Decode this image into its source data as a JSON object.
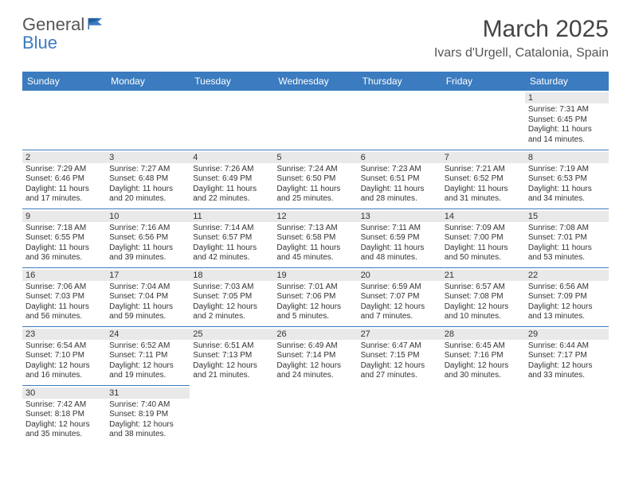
{
  "brand": {
    "name1": "General",
    "name2": "Blue"
  },
  "title": "March 2025",
  "location": "Ivars d'Urgell, Catalonia, Spain",
  "colors": {
    "headerBg": "#3b7bbf",
    "cellBorder": "#3b7bbf",
    "dayBg": "#e9e9e9"
  },
  "weekdays": [
    "Sunday",
    "Monday",
    "Tuesday",
    "Wednesday",
    "Thursday",
    "Friday",
    "Saturday"
  ],
  "weeks": [
    [
      null,
      null,
      null,
      null,
      null,
      null,
      {
        "d": "1",
        "sr": "Sunrise: 7:31 AM",
        "ss": "Sunset: 6:45 PM",
        "dl1": "Daylight: 11 hours",
        "dl2": "and 14 minutes."
      }
    ],
    [
      {
        "d": "2",
        "sr": "Sunrise: 7:29 AM",
        "ss": "Sunset: 6:46 PM",
        "dl1": "Daylight: 11 hours",
        "dl2": "and 17 minutes."
      },
      {
        "d": "3",
        "sr": "Sunrise: 7:27 AM",
        "ss": "Sunset: 6:48 PM",
        "dl1": "Daylight: 11 hours",
        "dl2": "and 20 minutes."
      },
      {
        "d": "4",
        "sr": "Sunrise: 7:26 AM",
        "ss": "Sunset: 6:49 PM",
        "dl1": "Daylight: 11 hours",
        "dl2": "and 22 minutes."
      },
      {
        "d": "5",
        "sr": "Sunrise: 7:24 AM",
        "ss": "Sunset: 6:50 PM",
        "dl1": "Daylight: 11 hours",
        "dl2": "and 25 minutes."
      },
      {
        "d": "6",
        "sr": "Sunrise: 7:23 AM",
        "ss": "Sunset: 6:51 PM",
        "dl1": "Daylight: 11 hours",
        "dl2": "and 28 minutes."
      },
      {
        "d": "7",
        "sr": "Sunrise: 7:21 AM",
        "ss": "Sunset: 6:52 PM",
        "dl1": "Daylight: 11 hours",
        "dl2": "and 31 minutes."
      },
      {
        "d": "8",
        "sr": "Sunrise: 7:19 AM",
        "ss": "Sunset: 6:53 PM",
        "dl1": "Daylight: 11 hours",
        "dl2": "and 34 minutes."
      }
    ],
    [
      {
        "d": "9",
        "sr": "Sunrise: 7:18 AM",
        "ss": "Sunset: 6:55 PM",
        "dl1": "Daylight: 11 hours",
        "dl2": "and 36 minutes."
      },
      {
        "d": "10",
        "sr": "Sunrise: 7:16 AM",
        "ss": "Sunset: 6:56 PM",
        "dl1": "Daylight: 11 hours",
        "dl2": "and 39 minutes."
      },
      {
        "d": "11",
        "sr": "Sunrise: 7:14 AM",
        "ss": "Sunset: 6:57 PM",
        "dl1": "Daylight: 11 hours",
        "dl2": "and 42 minutes."
      },
      {
        "d": "12",
        "sr": "Sunrise: 7:13 AM",
        "ss": "Sunset: 6:58 PM",
        "dl1": "Daylight: 11 hours",
        "dl2": "and 45 minutes."
      },
      {
        "d": "13",
        "sr": "Sunrise: 7:11 AM",
        "ss": "Sunset: 6:59 PM",
        "dl1": "Daylight: 11 hours",
        "dl2": "and 48 minutes."
      },
      {
        "d": "14",
        "sr": "Sunrise: 7:09 AM",
        "ss": "Sunset: 7:00 PM",
        "dl1": "Daylight: 11 hours",
        "dl2": "and 50 minutes."
      },
      {
        "d": "15",
        "sr": "Sunrise: 7:08 AM",
        "ss": "Sunset: 7:01 PM",
        "dl1": "Daylight: 11 hours",
        "dl2": "and 53 minutes."
      }
    ],
    [
      {
        "d": "16",
        "sr": "Sunrise: 7:06 AM",
        "ss": "Sunset: 7:03 PM",
        "dl1": "Daylight: 11 hours",
        "dl2": "and 56 minutes."
      },
      {
        "d": "17",
        "sr": "Sunrise: 7:04 AM",
        "ss": "Sunset: 7:04 PM",
        "dl1": "Daylight: 11 hours",
        "dl2": "and 59 minutes."
      },
      {
        "d": "18",
        "sr": "Sunrise: 7:03 AM",
        "ss": "Sunset: 7:05 PM",
        "dl1": "Daylight: 12 hours",
        "dl2": "and 2 minutes."
      },
      {
        "d": "19",
        "sr": "Sunrise: 7:01 AM",
        "ss": "Sunset: 7:06 PM",
        "dl1": "Daylight: 12 hours",
        "dl2": "and 5 minutes."
      },
      {
        "d": "20",
        "sr": "Sunrise: 6:59 AM",
        "ss": "Sunset: 7:07 PM",
        "dl1": "Daylight: 12 hours",
        "dl2": "and 7 minutes."
      },
      {
        "d": "21",
        "sr": "Sunrise: 6:57 AM",
        "ss": "Sunset: 7:08 PM",
        "dl1": "Daylight: 12 hours",
        "dl2": "and 10 minutes."
      },
      {
        "d": "22",
        "sr": "Sunrise: 6:56 AM",
        "ss": "Sunset: 7:09 PM",
        "dl1": "Daylight: 12 hours",
        "dl2": "and 13 minutes."
      }
    ],
    [
      {
        "d": "23",
        "sr": "Sunrise: 6:54 AM",
        "ss": "Sunset: 7:10 PM",
        "dl1": "Daylight: 12 hours",
        "dl2": "and 16 minutes."
      },
      {
        "d": "24",
        "sr": "Sunrise: 6:52 AM",
        "ss": "Sunset: 7:11 PM",
        "dl1": "Daylight: 12 hours",
        "dl2": "and 19 minutes."
      },
      {
        "d": "25",
        "sr": "Sunrise: 6:51 AM",
        "ss": "Sunset: 7:13 PM",
        "dl1": "Daylight: 12 hours",
        "dl2": "and 21 minutes."
      },
      {
        "d": "26",
        "sr": "Sunrise: 6:49 AM",
        "ss": "Sunset: 7:14 PM",
        "dl1": "Daylight: 12 hours",
        "dl2": "and 24 minutes."
      },
      {
        "d": "27",
        "sr": "Sunrise: 6:47 AM",
        "ss": "Sunset: 7:15 PM",
        "dl1": "Daylight: 12 hours",
        "dl2": "and 27 minutes."
      },
      {
        "d": "28",
        "sr": "Sunrise: 6:45 AM",
        "ss": "Sunset: 7:16 PM",
        "dl1": "Daylight: 12 hours",
        "dl2": "and 30 minutes."
      },
      {
        "d": "29",
        "sr": "Sunrise: 6:44 AM",
        "ss": "Sunset: 7:17 PM",
        "dl1": "Daylight: 12 hours",
        "dl2": "and 33 minutes."
      }
    ],
    [
      {
        "d": "30",
        "sr": "Sunrise: 7:42 AM",
        "ss": "Sunset: 8:18 PM",
        "dl1": "Daylight: 12 hours",
        "dl2": "and 35 minutes."
      },
      {
        "d": "31",
        "sr": "Sunrise: 7:40 AM",
        "ss": "Sunset: 8:19 PM",
        "dl1": "Daylight: 12 hours",
        "dl2": "and 38 minutes."
      },
      null,
      null,
      null,
      null,
      null
    ]
  ]
}
